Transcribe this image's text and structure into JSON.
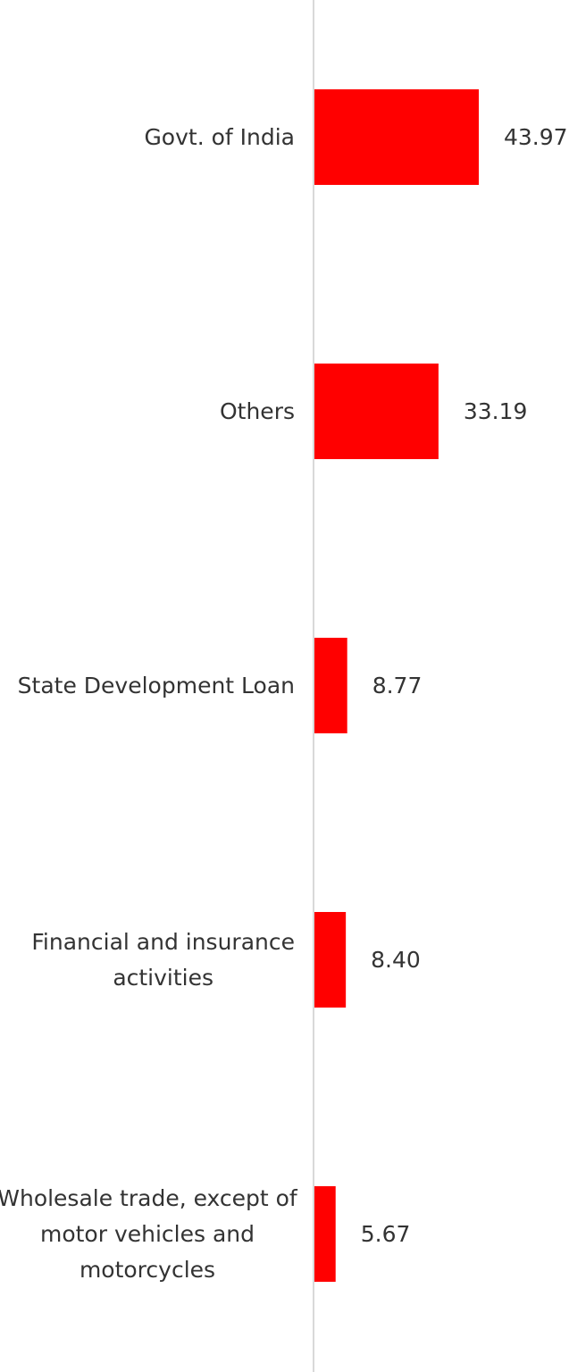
{
  "chart_data": {
    "type": "bar",
    "orientation": "horizontal",
    "categories": [
      "Govt. of India",
      "Others",
      "State Development Loan",
      "Financial and insurance activities",
      "Wholesale trade, except of motor vehicles and motorcycles"
    ],
    "category_lines": [
      [
        "Govt. of India"
      ],
      [
        "Others"
      ],
      [
        "State Development Loan"
      ],
      [
        "Financial and insurance",
        "activities"
      ],
      [
        "Wholesale trade, except of",
        "motor vehicles and",
        "motorcycles"
      ]
    ],
    "values": [
      43.97,
      33.19,
      8.77,
      8.4,
      5.67
    ],
    "value_labels": [
      "43.97",
      "33.19",
      "8.77",
      "8.40",
      "5.67"
    ],
    "title": "",
    "xlabel": "",
    "ylabel": "",
    "xlim": [
      0,
      100
    ],
    "grid": false,
    "legend": "none",
    "colors": {
      "bar": "#ff0000",
      "axis": "#d9d9d9",
      "text": "#333333",
      "background": "#ffffff"
    }
  }
}
